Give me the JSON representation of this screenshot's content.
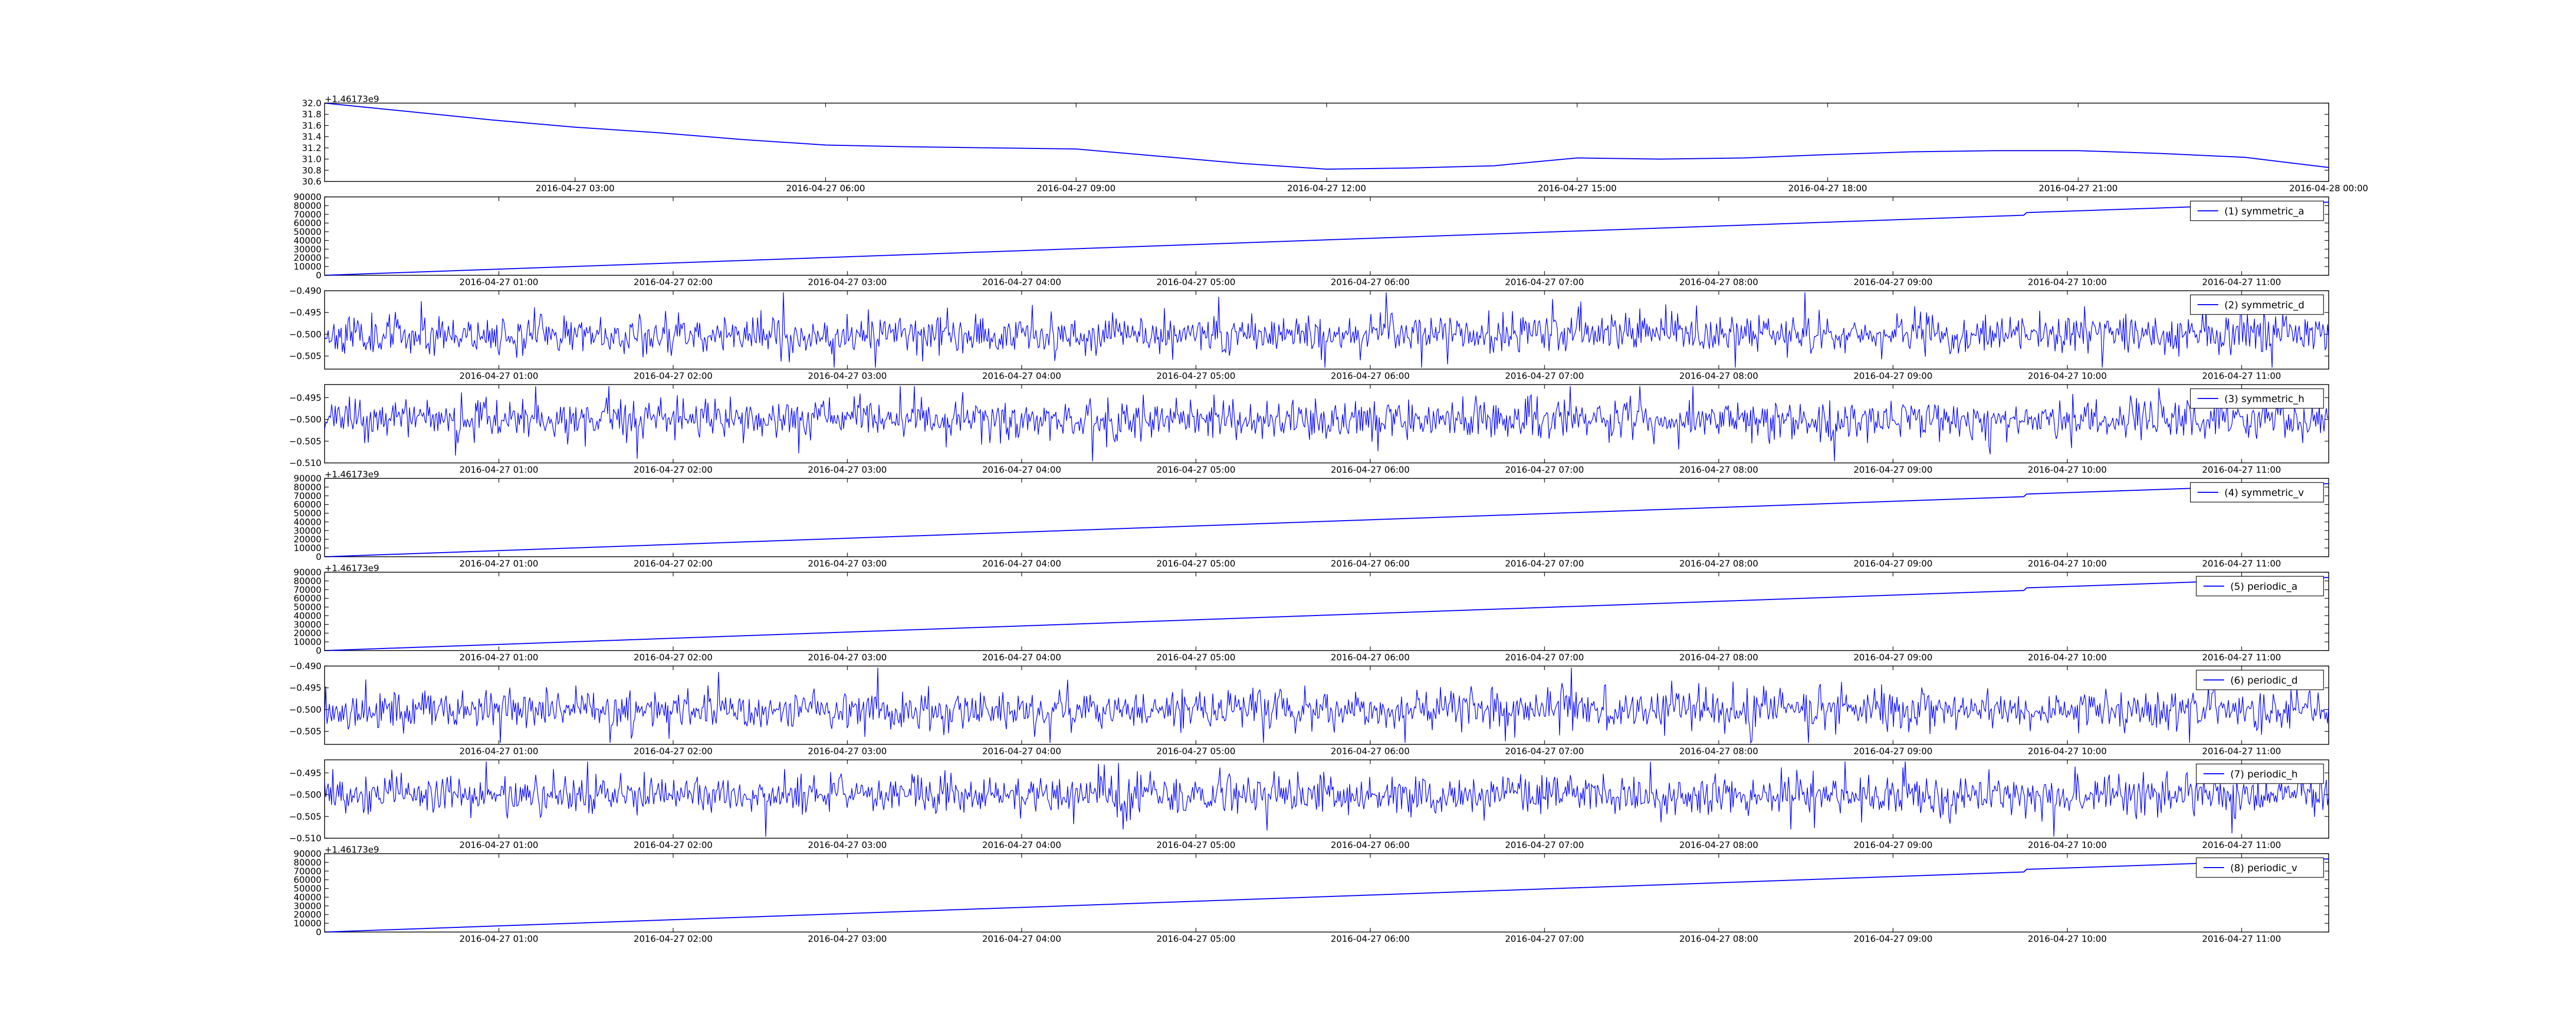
{
  "chart_data": [
    {
      "type": "line",
      "x_axis": "time",
      "xlim": [
        "2016-04-27 00:00",
        "2016-04-28 00:00"
      ],
      "ylim": [
        30.6,
        32.0
      ],
      "yticks": [
        "30.6",
        "30.8",
        "31.0",
        "31.2",
        "31.4",
        "31.6",
        "31.8",
        "32.0"
      ],
      "xticks": [
        "2016-04-27 03:00",
        "2016-04-27 06:00",
        "2016-04-27 09:00",
        "2016-04-27 12:00",
        "2016-04-27 15:00",
        "2016-04-27 18:00",
        "2016-04-27 21:00",
        "2016-04-28 00:00"
      ],
      "offset": "+1.46173e9",
      "legend": "",
      "grid": false,
      "color": "#0000ff",
      "series": [
        {
          "x": [
            "2016-04-27 00:00",
            "2016-04-27 01:00",
            "2016-04-27 02:00",
            "2016-04-27 03:00",
            "2016-04-27 04:00",
            "2016-04-27 05:00",
            "2016-04-27 06:00",
            "2016-04-27 07:00",
            "2016-04-27 08:00",
            "2016-04-27 09:00",
            "2016-04-27 10:00",
            "2016-04-27 11:00",
            "2016-04-27 12:00",
            "2016-04-27 13:00",
            "2016-04-27 14:00",
            "2016-04-27 15:00",
            "2016-04-27 16:00",
            "2016-04-27 17:00",
            "2016-04-27 18:00",
            "2016-04-27 19:00",
            "2016-04-27 20:00",
            "2016-04-27 21:00",
            "2016-04-27 22:00",
            "2016-04-27 23:00",
            "2016-04-28 00:00"
          ],
          "values": [
            32.0,
            31.85,
            31.7,
            31.57,
            31.47,
            31.35,
            31.25,
            31.22,
            31.2,
            31.18,
            31.05,
            30.92,
            30.82,
            30.84,
            30.88,
            31.02,
            31.0,
            31.02,
            31.08,
            31.13,
            31.15,
            31.15,
            31.1,
            31.03,
            30.85
          ]
        }
      ]
    },
    {
      "type": "line",
      "x_axis": "time",
      "xlim": [
        "2016-04-27 00:00",
        "2016-04-27 11:30"
      ],
      "ylim": [
        0,
        90000
      ],
      "yticks": [
        "0",
        "10000",
        "20000",
        "30000",
        "40000",
        "50000",
        "60000",
        "70000",
        "80000",
        "90000"
      ],
      "xticks": [
        "2016-04-27 01:00",
        "2016-04-27 02:00",
        "2016-04-27 03:00",
        "2016-04-27 04:00",
        "2016-04-27 05:00",
        "2016-04-27 06:00",
        "2016-04-27 07:00",
        "2016-04-27 08:00",
        "2016-04-27 09:00",
        "2016-04-27 10:00",
        "2016-04-27 11:00"
      ],
      "offset": "",
      "legend": "(1) symmetric_a",
      "grid": false,
      "color": "#0000ff",
      "series": [
        {
          "x": [
            "2016-04-27 00:00",
            "2016-04-27 09:45",
            "2016-04-27 09:46",
            "2016-04-27 11:30"
          ],
          "values": [
            0,
            69000,
            72000,
            84000
          ]
        }
      ]
    },
    {
      "type": "line",
      "x_axis": "time",
      "xlim": [
        "2016-04-27 00:00",
        "2016-04-27 11:30"
      ],
      "ylim": [
        -0.508,
        -0.49
      ],
      "yticks": [
        "-0.505",
        "-0.500",
        "-0.495",
        "-0.490"
      ],
      "xticks": [
        "2016-04-27 01:00",
        "2016-04-27 02:00",
        "2016-04-27 03:00",
        "2016-04-27 04:00",
        "2016-04-27 05:00",
        "2016-04-27 06:00",
        "2016-04-27 07:00",
        "2016-04-27 08:00",
        "2016-04-27 09:00",
        "2016-04-27 10:00",
        "2016-04-27 11:00"
      ],
      "offset": "",
      "legend": "(2) symmetric_d",
      "grid": false,
      "color": "#0000ff",
      "noise": {
        "center": -0.5,
        "spread": 0.0065,
        "seed": 11,
        "samples": 1700
      }
    },
    {
      "type": "line",
      "x_axis": "time",
      "xlim": [
        "2016-04-27 00:00",
        "2016-04-27 11:30"
      ],
      "ylim": [
        -0.51,
        -0.492
      ],
      "yticks": [
        "-0.510",
        "-0.505",
        "-0.500",
        "-0.495"
      ],
      "xticks": [
        "2016-04-27 01:00",
        "2016-04-27 02:00",
        "2016-04-27 03:00",
        "2016-04-27 04:00",
        "2016-04-27 05:00",
        "2016-04-27 06:00",
        "2016-04-27 07:00",
        "2016-04-27 08:00",
        "2016-04-27 09:00",
        "2016-04-27 10:00",
        "2016-04-27 11:00"
      ],
      "offset": "",
      "legend": "(3) symmetric_h",
      "grid": false,
      "color": "#0000ff",
      "noise": {
        "center": -0.5,
        "spread": 0.0065,
        "seed": 23,
        "samples": 1700
      }
    },
    {
      "type": "line",
      "x_axis": "time",
      "xlim": [
        "2016-04-27 00:00",
        "2016-04-27 11:30"
      ],
      "ylim": [
        0,
        90000
      ],
      "yticks": [
        "0",
        "10000",
        "20000",
        "30000",
        "40000",
        "50000",
        "60000",
        "70000",
        "80000",
        "90000"
      ],
      "xticks": [
        "2016-04-27 01:00",
        "2016-04-27 02:00",
        "2016-04-27 03:00",
        "2016-04-27 04:00",
        "2016-04-27 05:00",
        "2016-04-27 06:00",
        "2016-04-27 07:00",
        "2016-04-27 08:00",
        "2016-04-27 09:00",
        "2016-04-27 10:00",
        "2016-04-27 11:00"
      ],
      "offset": "+1.46173e9",
      "legend": "(4) symmetric_v",
      "grid": false,
      "color": "#0000ff",
      "series": [
        {
          "x": [
            "2016-04-27 00:00",
            "2016-04-27 09:45",
            "2016-04-27 09:46",
            "2016-04-27 11:30"
          ],
          "values": [
            0,
            69000,
            72000,
            84000
          ]
        }
      ]
    },
    {
      "type": "line",
      "x_axis": "time",
      "xlim": [
        "2016-04-27 00:00",
        "2016-04-27 11:30"
      ],
      "ylim": [
        0,
        90000
      ],
      "yticks": [
        "0",
        "10000",
        "20000",
        "30000",
        "40000",
        "50000",
        "60000",
        "70000",
        "80000",
        "90000"
      ],
      "xticks": [
        "2016-04-27 01:00",
        "2016-04-27 02:00",
        "2016-04-27 03:00",
        "2016-04-27 04:00",
        "2016-04-27 05:00",
        "2016-04-27 06:00",
        "2016-04-27 07:00",
        "2016-04-27 08:00",
        "2016-04-27 09:00",
        "2016-04-27 10:00",
        "2016-04-27 11:00"
      ],
      "offset": "+1.46173e9",
      "legend": "(5) periodic_a",
      "grid": false,
      "color": "#0000ff",
      "series": [
        {
          "x": [
            "2016-04-27 00:00",
            "2016-04-27 09:45",
            "2016-04-27 09:46",
            "2016-04-27 11:30"
          ],
          "values": [
            0,
            69000,
            72000,
            84000
          ]
        }
      ]
    },
    {
      "type": "line",
      "x_axis": "time",
      "xlim": [
        "2016-04-27 00:00",
        "2016-04-27 11:30"
      ],
      "ylim": [
        -0.508,
        -0.49
      ],
      "yticks": [
        "-0.505",
        "-0.500",
        "-0.495",
        "-0.490"
      ],
      "xticks": [
        "2016-04-27 01:00",
        "2016-04-27 02:00",
        "2016-04-27 03:00",
        "2016-04-27 04:00",
        "2016-04-27 05:00",
        "2016-04-27 06:00",
        "2016-04-27 07:00",
        "2016-04-27 08:00",
        "2016-04-27 09:00",
        "2016-04-27 10:00",
        "2016-04-27 11:00"
      ],
      "offset": "",
      "legend": "(6) periodic_d",
      "grid": false,
      "color": "#0000ff",
      "noise": {
        "center": -0.5,
        "spread": 0.0065,
        "seed": 37,
        "samples": 1700
      }
    },
    {
      "type": "line",
      "x_axis": "time",
      "xlim": [
        "2016-04-27 00:00",
        "2016-04-27 11:30"
      ],
      "ylim": [
        -0.51,
        -0.492
      ],
      "yticks": [
        "-0.510",
        "-0.505",
        "-0.500",
        "-0.495"
      ],
      "xticks": [
        "2016-04-27 01:00",
        "2016-04-27 02:00",
        "2016-04-27 03:00",
        "2016-04-27 04:00",
        "2016-04-27 05:00",
        "2016-04-27 06:00",
        "2016-04-27 07:00",
        "2016-04-27 08:00",
        "2016-04-27 09:00",
        "2016-04-27 10:00",
        "2016-04-27 11:00"
      ],
      "offset": "",
      "legend": "(7) periodic_h",
      "grid": false,
      "color": "#0000ff",
      "noise": {
        "center": -0.5,
        "spread": 0.0065,
        "seed": 53,
        "samples": 1700
      }
    },
    {
      "type": "line",
      "x_axis": "time",
      "xlim": [
        "2016-04-27 00:00",
        "2016-04-27 11:30"
      ],
      "ylim": [
        0,
        90000
      ],
      "yticks": [
        "0",
        "10000",
        "20000",
        "30000",
        "40000",
        "50000",
        "60000",
        "70000",
        "80000",
        "90000"
      ],
      "xticks": [
        "2016-04-27 01:00",
        "2016-04-27 02:00",
        "2016-04-27 03:00",
        "2016-04-27 04:00",
        "2016-04-27 05:00",
        "2016-04-27 06:00",
        "2016-04-27 07:00",
        "2016-04-27 08:00",
        "2016-04-27 09:00",
        "2016-04-27 10:00",
        "2016-04-27 11:00"
      ],
      "offset": "+1.46173e9",
      "legend": "(8) periodic_v",
      "grid": false,
      "color": "#0000ff",
      "series": [
        {
          "x": [
            "2016-04-27 00:00",
            "2016-04-27 09:45",
            "2016-04-27 09:46",
            "2016-04-27 11:30"
          ],
          "values": [
            0,
            69000,
            72000,
            84000
          ]
        }
      ]
    }
  ]
}
